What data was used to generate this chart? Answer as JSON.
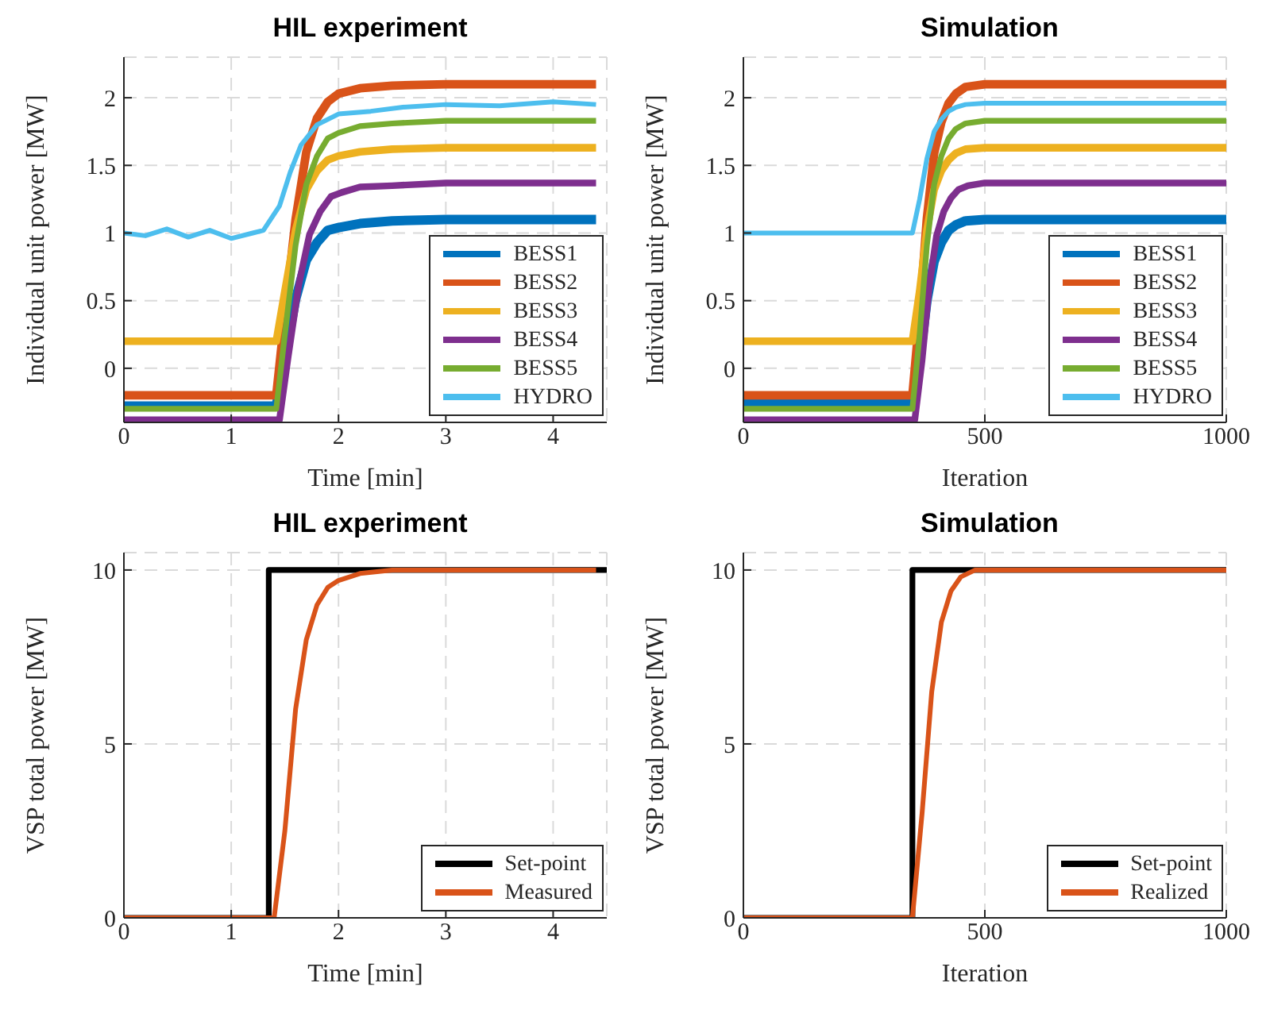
{
  "chart_data": [
    {
      "type": "line",
      "title": "HIL experiment",
      "xlabel": "Time [min]",
      "ylabel": "Individual unit power [MW]",
      "xlim": [
        0,
        4.5
      ],
      "xticks": [
        0,
        1,
        2,
        3,
        4
      ],
      "ylim": [
        -0.4,
        2.3
      ],
      "yticks": [
        0,
        0.5,
        1,
        1.5,
        2
      ],
      "grid": true,
      "legend": "bottom right",
      "line_style": "solid",
      "series": [
        {
          "name": "BESS1",
          "color": "#0072bd",
          "x": [
            0,
            1.42,
            1.5,
            1.6,
            1.7,
            1.8,
            1.9,
            2.0,
            2.2,
            2.5,
            3,
            4.4
          ],
          "values": [
            -0.28,
            -0.28,
            0.08,
            0.51,
            0.8,
            0.93,
            1.02,
            1.04,
            1.07,
            1.09,
            1.1,
            1.1
          ]
        },
        {
          "name": "BESS2",
          "color": "#d95319",
          "x": [
            0,
            1.42,
            1.5,
            1.6,
            1.7,
            1.8,
            1.9,
            2.0,
            2.2,
            2.5,
            3,
            4.4
          ],
          "values": [
            -0.2,
            -0.2,
            0.4,
            1.1,
            1.6,
            1.85,
            1.97,
            2.03,
            2.07,
            2.09,
            2.1,
            2.1
          ]
        },
        {
          "name": "BESS3",
          "color": "#edb120",
          "x": [
            0,
            1.42,
            1.5,
            1.6,
            1.7,
            1.8,
            1.9,
            2.0,
            2.2,
            2.5,
            3,
            4.4
          ],
          "values": [
            0.2,
            0.2,
            0.57,
            1.02,
            1.32,
            1.46,
            1.54,
            1.57,
            1.6,
            1.62,
            1.63,
            1.63
          ]
        },
        {
          "name": "BESS4",
          "color": "#7e2f8e",
          "x": [
            0,
            1.45,
            1.53,
            1.63,
            1.73,
            1.83,
            1.93,
            2.03,
            2.2,
            2.5,
            3,
            4.4
          ],
          "values": [
            -0.38,
            -0.38,
            0.08,
            0.62,
            0.99,
            1.16,
            1.27,
            1.3,
            1.34,
            1.35,
            1.37,
            1.37
          ]
        },
        {
          "name": "BESS5",
          "color": "#77ac30",
          "x": [
            0,
            1.42,
            1.5,
            1.6,
            1.7,
            1.8,
            1.9,
            2.0,
            2.2,
            2.5,
            3,
            4.4
          ],
          "values": [
            -0.3,
            -0.3,
            0.25,
            0.91,
            1.36,
            1.57,
            1.7,
            1.74,
            1.79,
            1.81,
            1.83,
            1.83
          ]
        },
        {
          "name": "HYDRO",
          "color": "#4dbeee",
          "x": [
            0,
            0.2,
            0.4,
            0.6,
            0.8,
            1.0,
            1.2,
            1.3,
            1.45,
            1.55,
            1.65,
            1.8,
            2.0,
            2.3,
            2.6,
            3.0,
            3.5,
            4.0,
            4.4
          ],
          "values": [
            1.0,
            0.98,
            1.03,
            0.97,
            1.02,
            0.96,
            1.0,
            1.02,
            1.2,
            1.45,
            1.65,
            1.8,
            1.88,
            1.9,
            1.93,
            1.95,
            1.94,
            1.97,
            1.95
          ]
        }
      ]
    },
    {
      "type": "line",
      "title": "Simulation",
      "xlabel": "Iteration",
      "ylabel": "Individual unit power [MW]",
      "xlim": [
        0,
        1000
      ],
      "xticks": [
        0,
        500,
        1000
      ],
      "ylim": [
        -0.4,
        2.3
      ],
      "yticks": [
        0,
        0.5,
        1,
        1.5,
        2
      ],
      "grid": true,
      "legend": "bottom right",
      "line_style": "solid",
      "series": [
        {
          "name": "BESS1",
          "color": "#0072bd",
          "x": [
            0,
            350,
            365,
            380,
            395,
            410,
            425,
            440,
            460,
            500,
            1000
          ],
          "values": [
            -0.26,
            -0.26,
            0.06,
            0.5,
            0.79,
            0.93,
            1.02,
            1.06,
            1.09,
            1.1,
            1.1
          ]
        },
        {
          "name": "BESS2",
          "color": "#d95319",
          "x": [
            0,
            350,
            365,
            380,
            395,
            410,
            425,
            440,
            460,
            500,
            1000
          ],
          "values": [
            -0.2,
            -0.2,
            0.4,
            1.11,
            1.59,
            1.82,
            1.96,
            2.03,
            2.08,
            2.1,
            2.1
          ]
        },
        {
          "name": "BESS3",
          "color": "#edb120",
          "x": [
            0,
            350,
            365,
            380,
            395,
            410,
            425,
            440,
            460,
            500,
            1000
          ],
          "values": [
            0.2,
            0.2,
            0.57,
            1.02,
            1.32,
            1.46,
            1.54,
            1.59,
            1.62,
            1.63,
            1.63
          ]
        },
        {
          "name": "BESS4",
          "color": "#7e2f8e",
          "x": [
            0,
            355,
            370,
            385,
            400,
            415,
            430,
            445,
            465,
            500,
            1000
          ],
          "values": [
            -0.38,
            -0.38,
            0.06,
            0.61,
            0.98,
            1.16,
            1.26,
            1.32,
            1.35,
            1.37,
            1.37
          ]
        },
        {
          "name": "BESS5",
          "color": "#77ac30",
          "x": [
            0,
            350,
            365,
            380,
            395,
            410,
            425,
            440,
            460,
            500,
            1000
          ],
          "values": [
            -0.3,
            -0.3,
            0.25,
            0.91,
            1.36,
            1.57,
            1.7,
            1.77,
            1.81,
            1.83,
            1.83
          ]
        },
        {
          "name": "HYDRO",
          "color": "#4dbeee",
          "x": [
            0,
            350,
            365,
            380,
            395,
            410,
            425,
            440,
            460,
            500,
            1000
          ],
          "values": [
            1,
            1,
            1.25,
            1.55,
            1.75,
            1.84,
            1.9,
            1.93,
            1.95,
            1.96,
            1.96
          ]
        }
      ]
    },
    {
      "type": "line",
      "title": "HIL experiment",
      "xlabel": "Time [min]",
      "ylabel": "VSP total power [MW]",
      "xlim": [
        0,
        4.5
      ],
      "xticks": [
        0,
        1,
        2,
        3,
        4
      ],
      "ylim": [
        0,
        10.5
      ],
      "yticks": [
        0,
        5,
        10
      ],
      "grid": true,
      "legend": "bottom right",
      "line_style": "solid",
      "series": [
        {
          "name": "Set-point",
          "color": "#000000",
          "x": [
            0,
            1.35,
            1.35,
            4.5
          ],
          "values": [
            0,
            0,
            10,
            10
          ]
        },
        {
          "name": "Measured",
          "color": "#d95319",
          "x": [
            0,
            1.4,
            1.5,
            1.6,
            1.7,
            1.8,
            1.9,
            2.0,
            2.2,
            2.5,
            3,
            4.4
          ],
          "values": [
            0,
            0,
            2.5,
            6,
            8,
            9,
            9.5,
            9.7,
            9.9,
            10,
            10,
            10
          ]
        }
      ]
    },
    {
      "type": "line",
      "title": "Simulation",
      "xlabel": "Iteration",
      "ylabel": "VSP total power [MW]",
      "xlim": [
        0,
        1000
      ],
      "xticks": [
        0,
        500,
        1000
      ],
      "ylim": [
        0,
        10.5
      ],
      "yticks": [
        0,
        5,
        10
      ],
      "grid": true,
      "legend": "bottom right",
      "line_style": "solid",
      "series": [
        {
          "name": "Set-point",
          "color": "#000000",
          "x": [
            0,
            350,
            350,
            1000
          ],
          "values": [
            0,
            0,
            10,
            10
          ]
        },
        {
          "name": "Realized",
          "color": "#d95319",
          "x": [
            0,
            350,
            370,
            390,
            410,
            430,
            450,
            480,
            1000
          ],
          "values": [
            0,
            0,
            3,
            6.5,
            8.5,
            9.4,
            9.8,
            10,
            10
          ]
        }
      ]
    }
  ]
}
